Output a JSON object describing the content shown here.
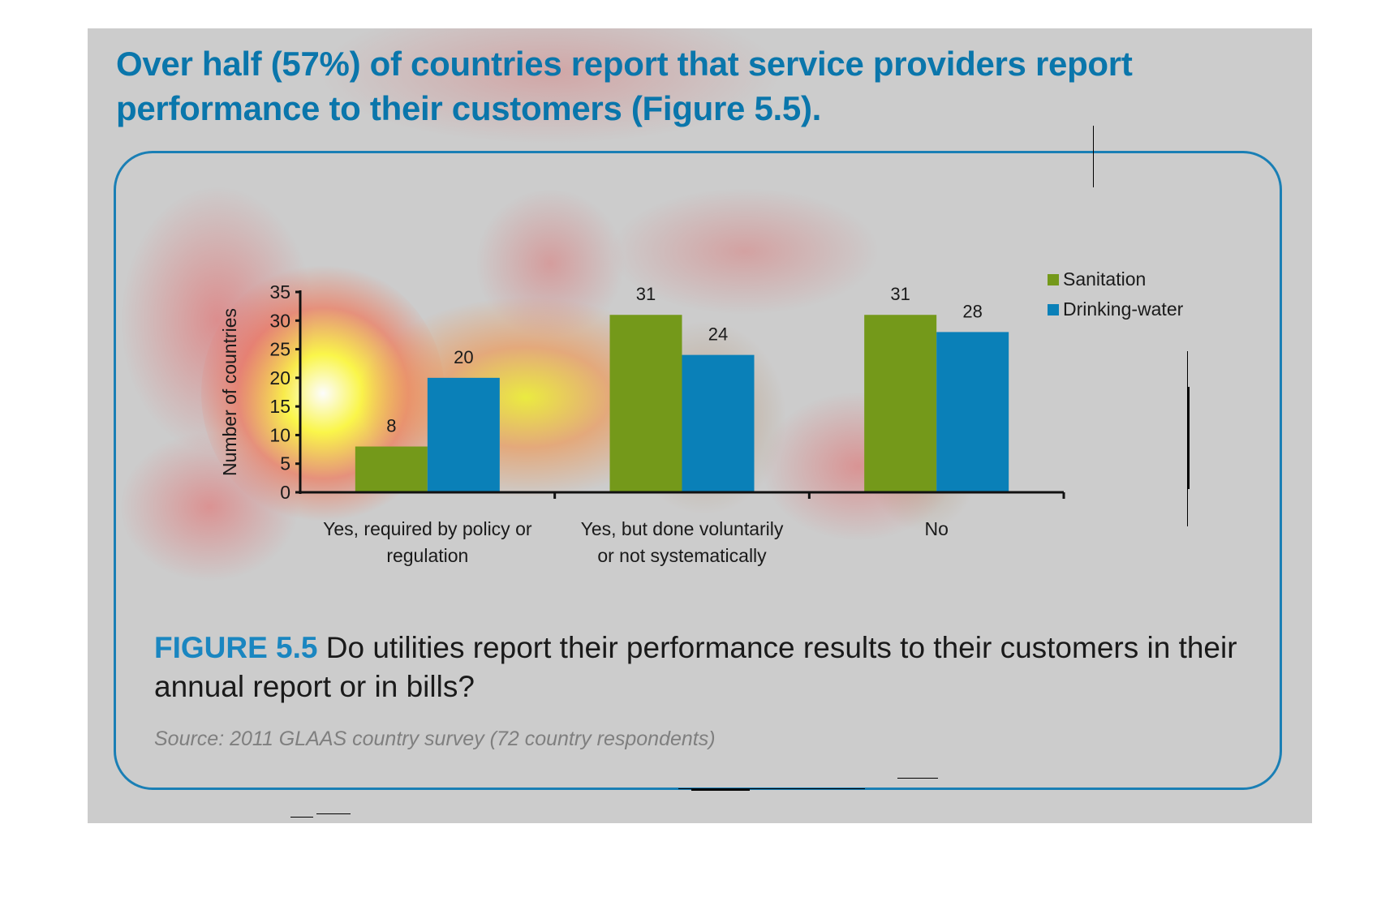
{
  "headline": "Over half (57%) of countries report that service providers report performance to their customers (Figure 5.5).",
  "figure": {
    "label": "FIGURE 5.5",
    "question": "Do utilities report their performance results to their customers in their annual report or in bills?",
    "source": "Source: 2011 GLAAS country survey (72 country respondents)"
  },
  "colors": {
    "headline": "#0a76ab",
    "box_border": "#1a7fb5",
    "sanitation": "#74991a",
    "drinking_water": "#0a80b8",
    "panel_bg": "#cccccc"
  },
  "chart_data": {
    "type": "bar",
    "title": "",
    "xlabel": "",
    "ylabel": "Number of countries",
    "ylim": [
      0,
      35
    ],
    "yticks": [
      0,
      5,
      10,
      15,
      20,
      25,
      30,
      35
    ],
    "grid": false,
    "legend_position": "top-right",
    "categories": [
      [
        "Yes, required by policy or",
        "regulation"
      ],
      [
        "Yes, but done voluntarily",
        "or not systematically"
      ],
      [
        "No"
      ]
    ],
    "series": [
      {
        "name": "Sanitation",
        "color": "#74991a",
        "values": [
          8,
          31,
          31
        ]
      },
      {
        "name": "Drinking-water",
        "color": "#0a80b8",
        "values": [
          20,
          24,
          28
        ]
      }
    ]
  }
}
